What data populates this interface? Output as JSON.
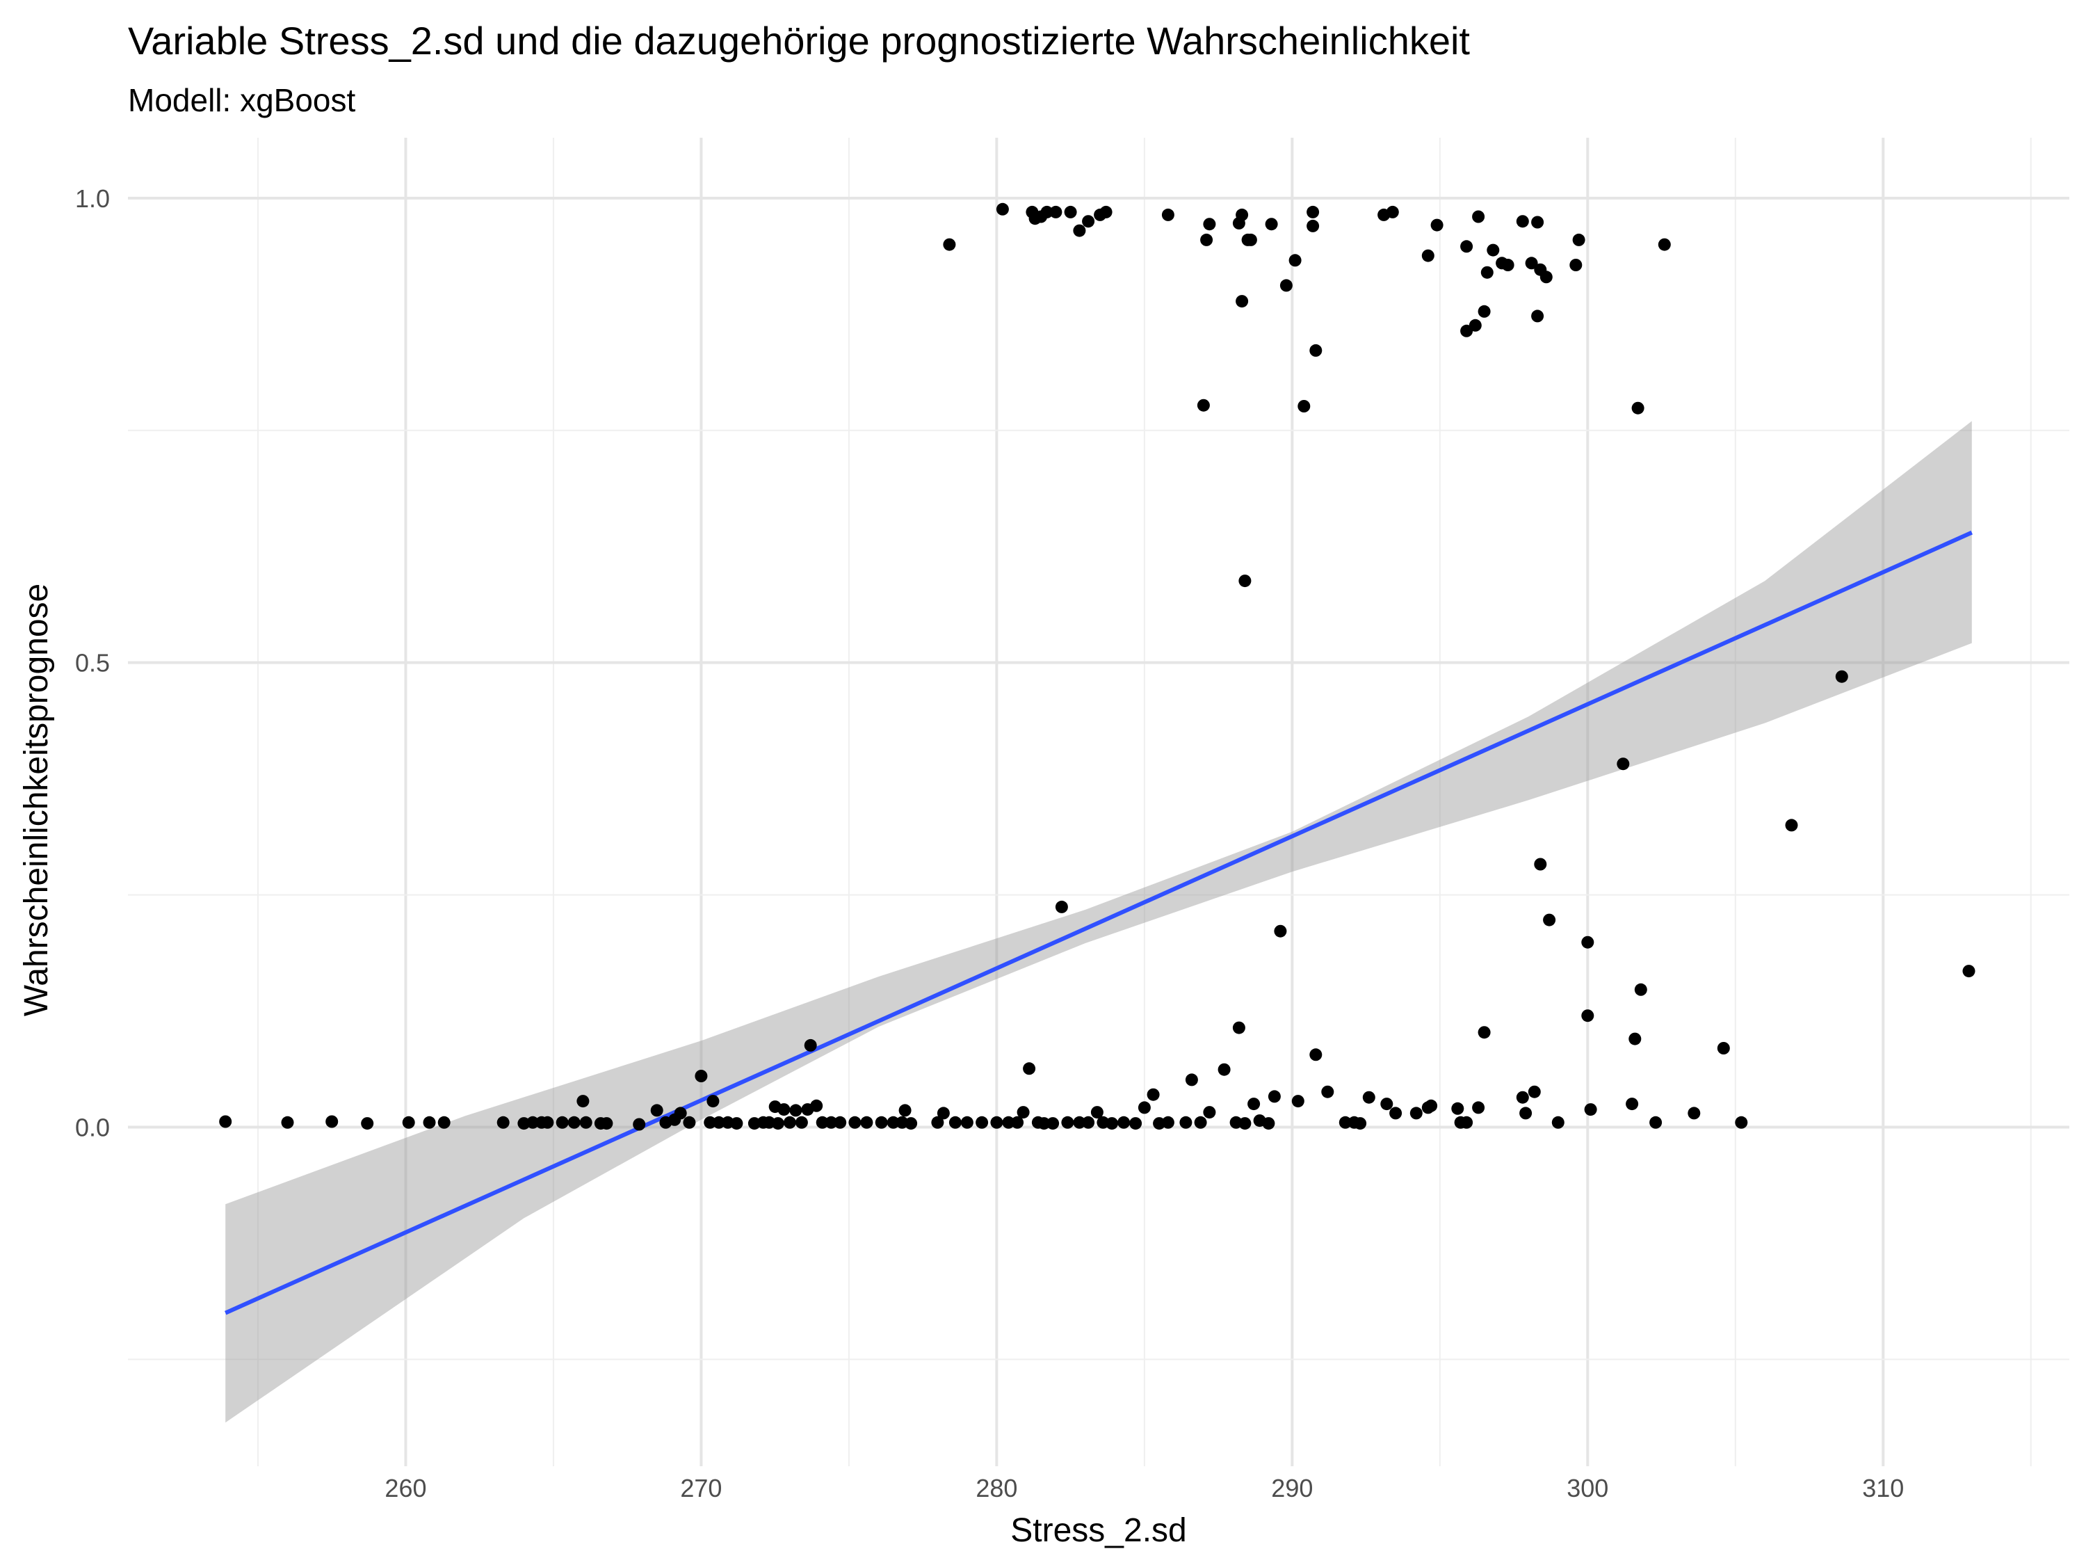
{
  "chart_data": {
    "type": "scatter",
    "title": "Variable Stress_2.sd und die dazugehörige prognostizierte Wahrscheinlichkeit",
    "subtitle": "Modell: xgBoost",
    "xlabel": "Stress_2.sd",
    "ylabel": "Wahrscheinlichkeitsprognose",
    "xlim": [
      250.6,
      316.3
    ],
    "ylim": [
      -0.365,
      1.065
    ],
    "x_ticks": [
      260,
      270,
      280,
      290,
      300,
      310
    ],
    "x_tick_labels": [
      "260",
      "270",
      "280",
      "290",
      "300",
      "310"
    ],
    "y_ticks": [
      0,
      0.5,
      1
    ],
    "y_tick_labels": [
      "0.0",
      "0.5",
      "1.0"
    ],
    "grid": true,
    "legend": "none",
    "colors": {
      "points": "#000000",
      "fit_line": "#3050ff",
      "ribbon": "#999999",
      "grid": "#e5e5e5"
    },
    "fit": {
      "method": "linear regression with confidence band",
      "x": [
        253.9,
        313.0
      ],
      "y": [
        -0.2,
        0.64
      ],
      "band_lower": [
        [
          253.9,
          -0.318
        ],
        [
          264,
          -0.098
        ],
        [
          270,
          0.008
        ],
        [
          276,
          0.108
        ],
        [
          283,
          0.198
        ],
        [
          290,
          0.275
        ],
        [
          298,
          0.352
        ],
        [
          306,
          0.435
        ],
        [
          313.0,
          0.521
        ]
      ],
      "band_upper": [
        [
          253.9,
          -0.083
        ],
        [
          262,
          0.012
        ],
        [
          270,
          0.093
        ],
        [
          276,
          0.162
        ],
        [
          283,
          0.234
        ],
        [
          290,
          0.318
        ],
        [
          298,
          0.442
        ],
        [
          306,
          0.588
        ],
        [
          313.0,
          0.76
        ]
      ]
    },
    "series": [
      {
        "points": [
          [
            253.9,
            0.006
          ],
          [
            256.0,
            0.005
          ],
          [
            257.5,
            0.006
          ],
          [
            258.7,
            0.004
          ],
          [
            260.1,
            0.005
          ],
          [
            260.8,
            0.005
          ],
          [
            261.3,
            0.005
          ],
          [
            263.3,
            0.005
          ],
          [
            264.0,
            0.004
          ],
          [
            264.3,
            0.005
          ],
          [
            264.6,
            0.005
          ],
          [
            264.8,
            0.005
          ],
          [
            265.3,
            0.005
          ],
          [
            265.7,
            0.005
          ],
          [
            266.0,
            0.028
          ],
          [
            266.1,
            0.005
          ],
          [
            266.6,
            0.004
          ],
          [
            266.8,
            0.004
          ],
          [
            267.9,
            0.003
          ],
          [
            268.5,
            0.018
          ],
          [
            268.8,
            0.005
          ],
          [
            269.1,
            0.008
          ],
          [
            269.3,
            0.015
          ],
          [
            269.6,
            0.005
          ],
          [
            270.0,
            0.055
          ],
          [
            270.3,
            0.005
          ],
          [
            270.4,
            0.028
          ],
          [
            270.6,
            0.005
          ],
          [
            270.9,
            0.005
          ],
          [
            271.2,
            0.004
          ],
          [
            271.8,
            0.004
          ],
          [
            272.1,
            0.005
          ],
          [
            272.3,
            0.005
          ],
          [
            272.5,
            0.022
          ],
          [
            272.6,
            0.004
          ],
          [
            272.8,
            0.019
          ],
          [
            273.0,
            0.005
          ],
          [
            273.2,
            0.018
          ],
          [
            273.4,
            0.005
          ],
          [
            273.6,
            0.019
          ],
          [
            273.7,
            0.088
          ],
          [
            273.9,
            0.023
          ],
          [
            274.1,
            0.005
          ],
          [
            274.4,
            0.005
          ],
          [
            274.7,
            0.005
          ],
          [
            275.2,
            0.005
          ],
          [
            275.6,
            0.005
          ],
          [
            276.1,
            0.005
          ],
          [
            276.5,
            0.005
          ],
          [
            276.8,
            0.005
          ],
          [
            276.9,
            0.018
          ],
          [
            277.1,
            0.004
          ],
          [
            278.0,
            0.005
          ],
          [
            278.2,
            0.015
          ],
          [
            278.6,
            0.005
          ],
          [
            279.0,
            0.005
          ],
          [
            279.5,
            0.005
          ],
          [
            280.0,
            0.005
          ],
          [
            280.4,
            0.005
          ],
          [
            280.7,
            0.005
          ],
          [
            280.9,
            0.016
          ],
          [
            281.1,
            0.063
          ],
          [
            281.4,
            0.005
          ],
          [
            281.6,
            0.004
          ],
          [
            281.9,
            0.004
          ],
          [
            282.2,
            0.237
          ],
          [
            282.4,
            0.005
          ],
          [
            282.8,
            0.005
          ],
          [
            283.1,
            0.005
          ],
          [
            283.4,
            0.016
          ],
          [
            283.6,
            0.005
          ],
          [
            283.9,
            0.004
          ],
          [
            284.3,
            0.005
          ],
          [
            284.7,
            0.004
          ],
          [
            285.0,
            0.021
          ],
          [
            285.3,
            0.035
          ],
          [
            285.5,
            0.004
          ],
          [
            285.8,
            0.005
          ],
          [
            286.4,
            0.005
          ],
          [
            286.6,
            0.051
          ],
          [
            286.9,
            0.005
          ],
          [
            287.2,
            0.016
          ],
          [
            287.7,
            0.062
          ],
          [
            288.1,
            0.005
          ],
          [
            288.2,
            0.107
          ],
          [
            288.4,
            0.004
          ],
          [
            288.7,
            0.025
          ],
          [
            288.9,
            0.007
          ],
          [
            289.2,
            0.004
          ],
          [
            289.4,
            0.033
          ],
          [
            289.6,
            0.211
          ],
          [
            290.2,
            0.028
          ],
          [
            290.8,
            0.078
          ],
          [
            291.2,
            0.038
          ],
          [
            291.8,
            0.005
          ],
          [
            292.1,
            0.005
          ],
          [
            292.3,
            0.004
          ],
          [
            292.6,
            0.032
          ],
          [
            293.2,
            0.025
          ],
          [
            293.5,
            0.015
          ],
          [
            294.2,
            0.015
          ],
          [
            294.6,
            0.021
          ],
          [
            294.7,
            0.023
          ],
          [
            295.6,
            0.02
          ],
          [
            295.7,
            0.005
          ],
          [
            295.9,
            0.005
          ],
          [
            296.3,
            0.021
          ],
          [
            296.5,
            0.102
          ],
          [
            297.8,
            0.032
          ],
          [
            297.9,
            0.015
          ],
          [
            298.2,
            0.038
          ],
          [
            298.4,
            0.283
          ],
          [
            298.7,
            0.223
          ],
          [
            299.0,
            0.005
          ],
          [
            300.0,
            0.199
          ],
          [
            300.0,
            0.12
          ],
          [
            300.1,
            0.019
          ],
          [
            301.2,
            0.391
          ],
          [
            301.5,
            0.025
          ],
          [
            301.6,
            0.095
          ],
          [
            301.8,
            0.148
          ],
          [
            302.3,
            0.005
          ],
          [
            303.6,
            0.015
          ],
          [
            304.6,
            0.085
          ],
          [
            305.2,
            0.005
          ],
          [
            306.9,
            0.325
          ],
          [
            308.6,
            0.485
          ],
          [
            312.9,
            0.168
          ],
          [
            278.4,
            0.95
          ],
          [
            280.2,
            0.988
          ],
          [
            281.2,
            0.985
          ],
          [
            281.3,
            0.978
          ],
          [
            281.5,
            0.98
          ],
          [
            281.7,
            0.985
          ],
          [
            282.0,
            0.985
          ],
          [
            282.5,
            0.985
          ],
          [
            282.8,
            0.965
          ],
          [
            283.1,
            0.975
          ],
          [
            283.5,
            0.982
          ],
          [
            283.7,
            0.985
          ],
          [
            285.8,
            0.982
          ],
          [
            287.0,
            0.777
          ],
          [
            287.1,
            0.955
          ],
          [
            287.2,
            0.972
          ],
          [
            288.2,
            0.973
          ],
          [
            288.3,
            0.982
          ],
          [
            288.3,
            0.889
          ],
          [
            288.4,
            0.588
          ],
          [
            288.5,
            0.955
          ],
          [
            288.6,
            0.955
          ],
          [
            289.3,
            0.972
          ],
          [
            289.8,
            0.906
          ],
          [
            290.1,
            0.933
          ],
          [
            290.4,
            0.776
          ],
          [
            290.7,
            0.985
          ],
          [
            290.7,
            0.97
          ],
          [
            290.8,
            0.836
          ],
          [
            293.1,
            0.982
          ],
          [
            293.4,
            0.985
          ],
          [
            294.6,
            0.938
          ],
          [
            294.9,
            0.971
          ],
          [
            295.9,
            0.857
          ],
          [
            295.9,
            0.948
          ],
          [
            296.2,
            0.863
          ],
          [
            296.3,
            0.98
          ],
          [
            296.5,
            0.878
          ],
          [
            296.6,
            0.92
          ],
          [
            296.8,
            0.944
          ],
          [
            297.1,
            0.93
          ],
          [
            297.3,
            0.928
          ],
          [
            297.8,
            0.975
          ],
          [
            298.1,
            0.93
          ],
          [
            298.3,
            0.873
          ],
          [
            298.3,
            0.974
          ],
          [
            298.4,
            0.923
          ],
          [
            298.6,
            0.915
          ],
          [
            299.6,
            0.928
          ],
          [
            299.7,
            0.955
          ],
          [
            301.7,
            0.774
          ],
          [
            302.6,
            0.95
          ]
        ]
      }
    ]
  }
}
